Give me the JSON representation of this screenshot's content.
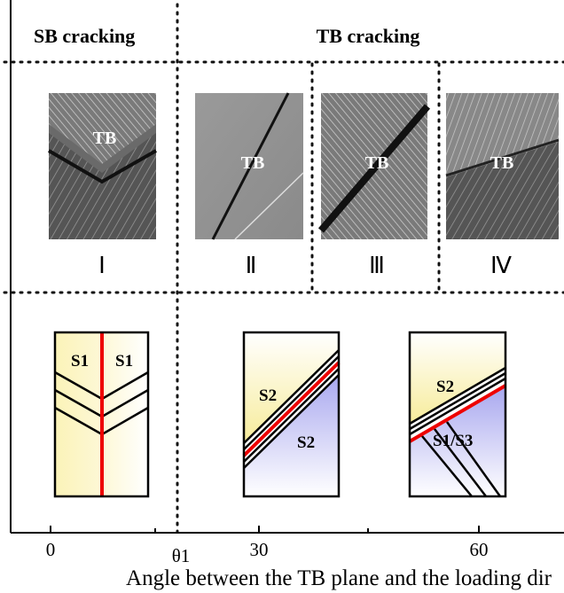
{
  "header": {
    "sb": "SB cracking",
    "tb": "TB cracking"
  },
  "micrographs": [
    {
      "label": "TB",
      "numeral": "Ⅰ"
    },
    {
      "label": "TB",
      "numeral": "Ⅱ"
    },
    {
      "label": "TB",
      "numeral": "Ⅲ"
    },
    {
      "label": "TB",
      "numeral": "Ⅳ"
    }
  ],
  "schematics": [
    {
      "labels": [
        "S1",
        "S1"
      ]
    },
    {
      "labels": [
        "S2",
        "S2"
      ]
    },
    {
      "labels": [
        "S2",
        "S1/S3"
      ]
    }
  ],
  "axis": {
    "ticks": [
      "0",
      "θ1",
      "30",
      "60"
    ],
    "title": "Angle between the TB plane and the loading dir"
  }
}
